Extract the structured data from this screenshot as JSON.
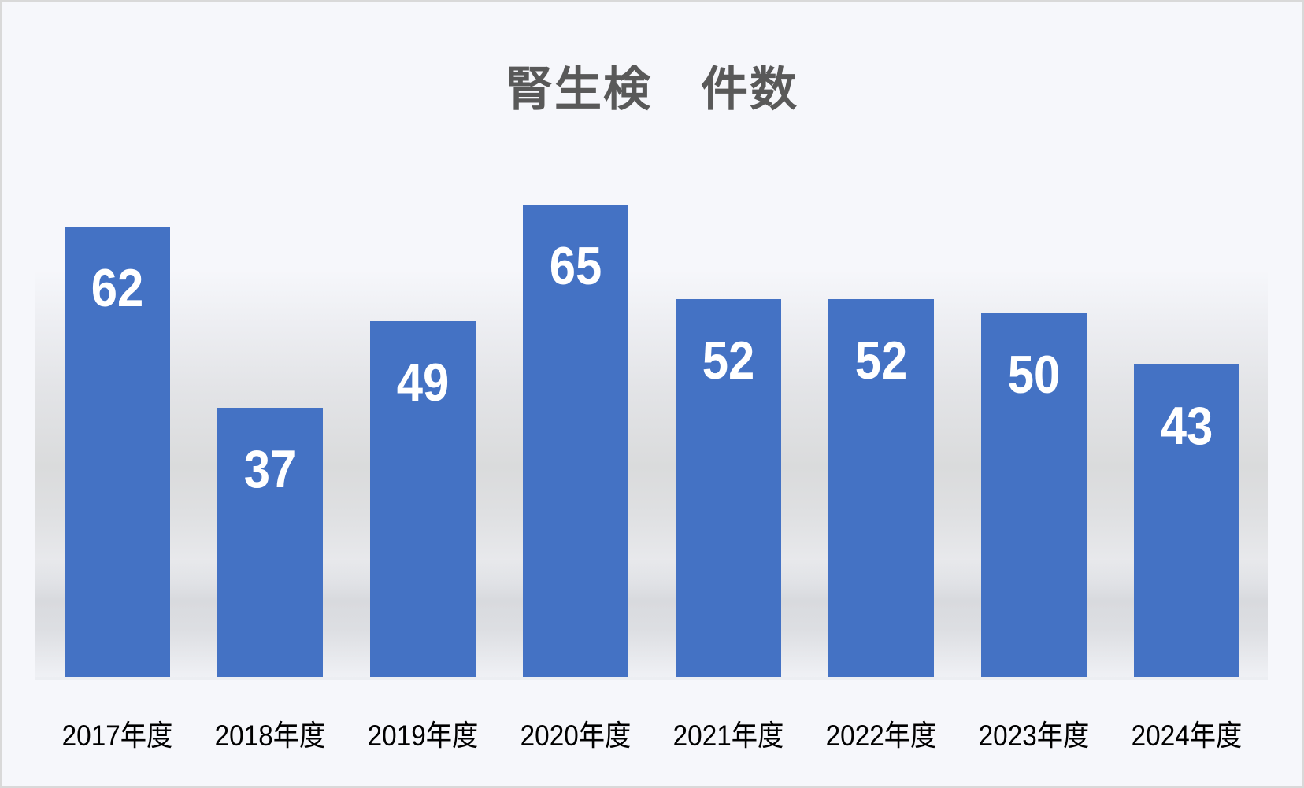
{
  "title": "腎生検　件数",
  "colors": {
    "bar": "#4472c4",
    "title": "#595959",
    "background": "#f6f7fb",
    "border": "#d9d9d9"
  },
  "chart_data": {
    "type": "bar",
    "title": "腎生検　件数",
    "xlabel": "",
    "ylabel": "",
    "categories": [
      "2017年度",
      "2018年度",
      "2019年度",
      "2020年度",
      "2021年度",
      "2022年度",
      "2023年度",
      "2024年度"
    ],
    "values": [
      62,
      37,
      49,
      65,
      52,
      52,
      50,
      43
    ],
    "data_labels": [
      "62",
      "37",
      "49",
      "65",
      "52",
      "52",
      "50",
      "43"
    ],
    "ylim": [
      0,
      65
    ],
    "grid": false,
    "legend": "none",
    "y_axis_visible": false
  }
}
